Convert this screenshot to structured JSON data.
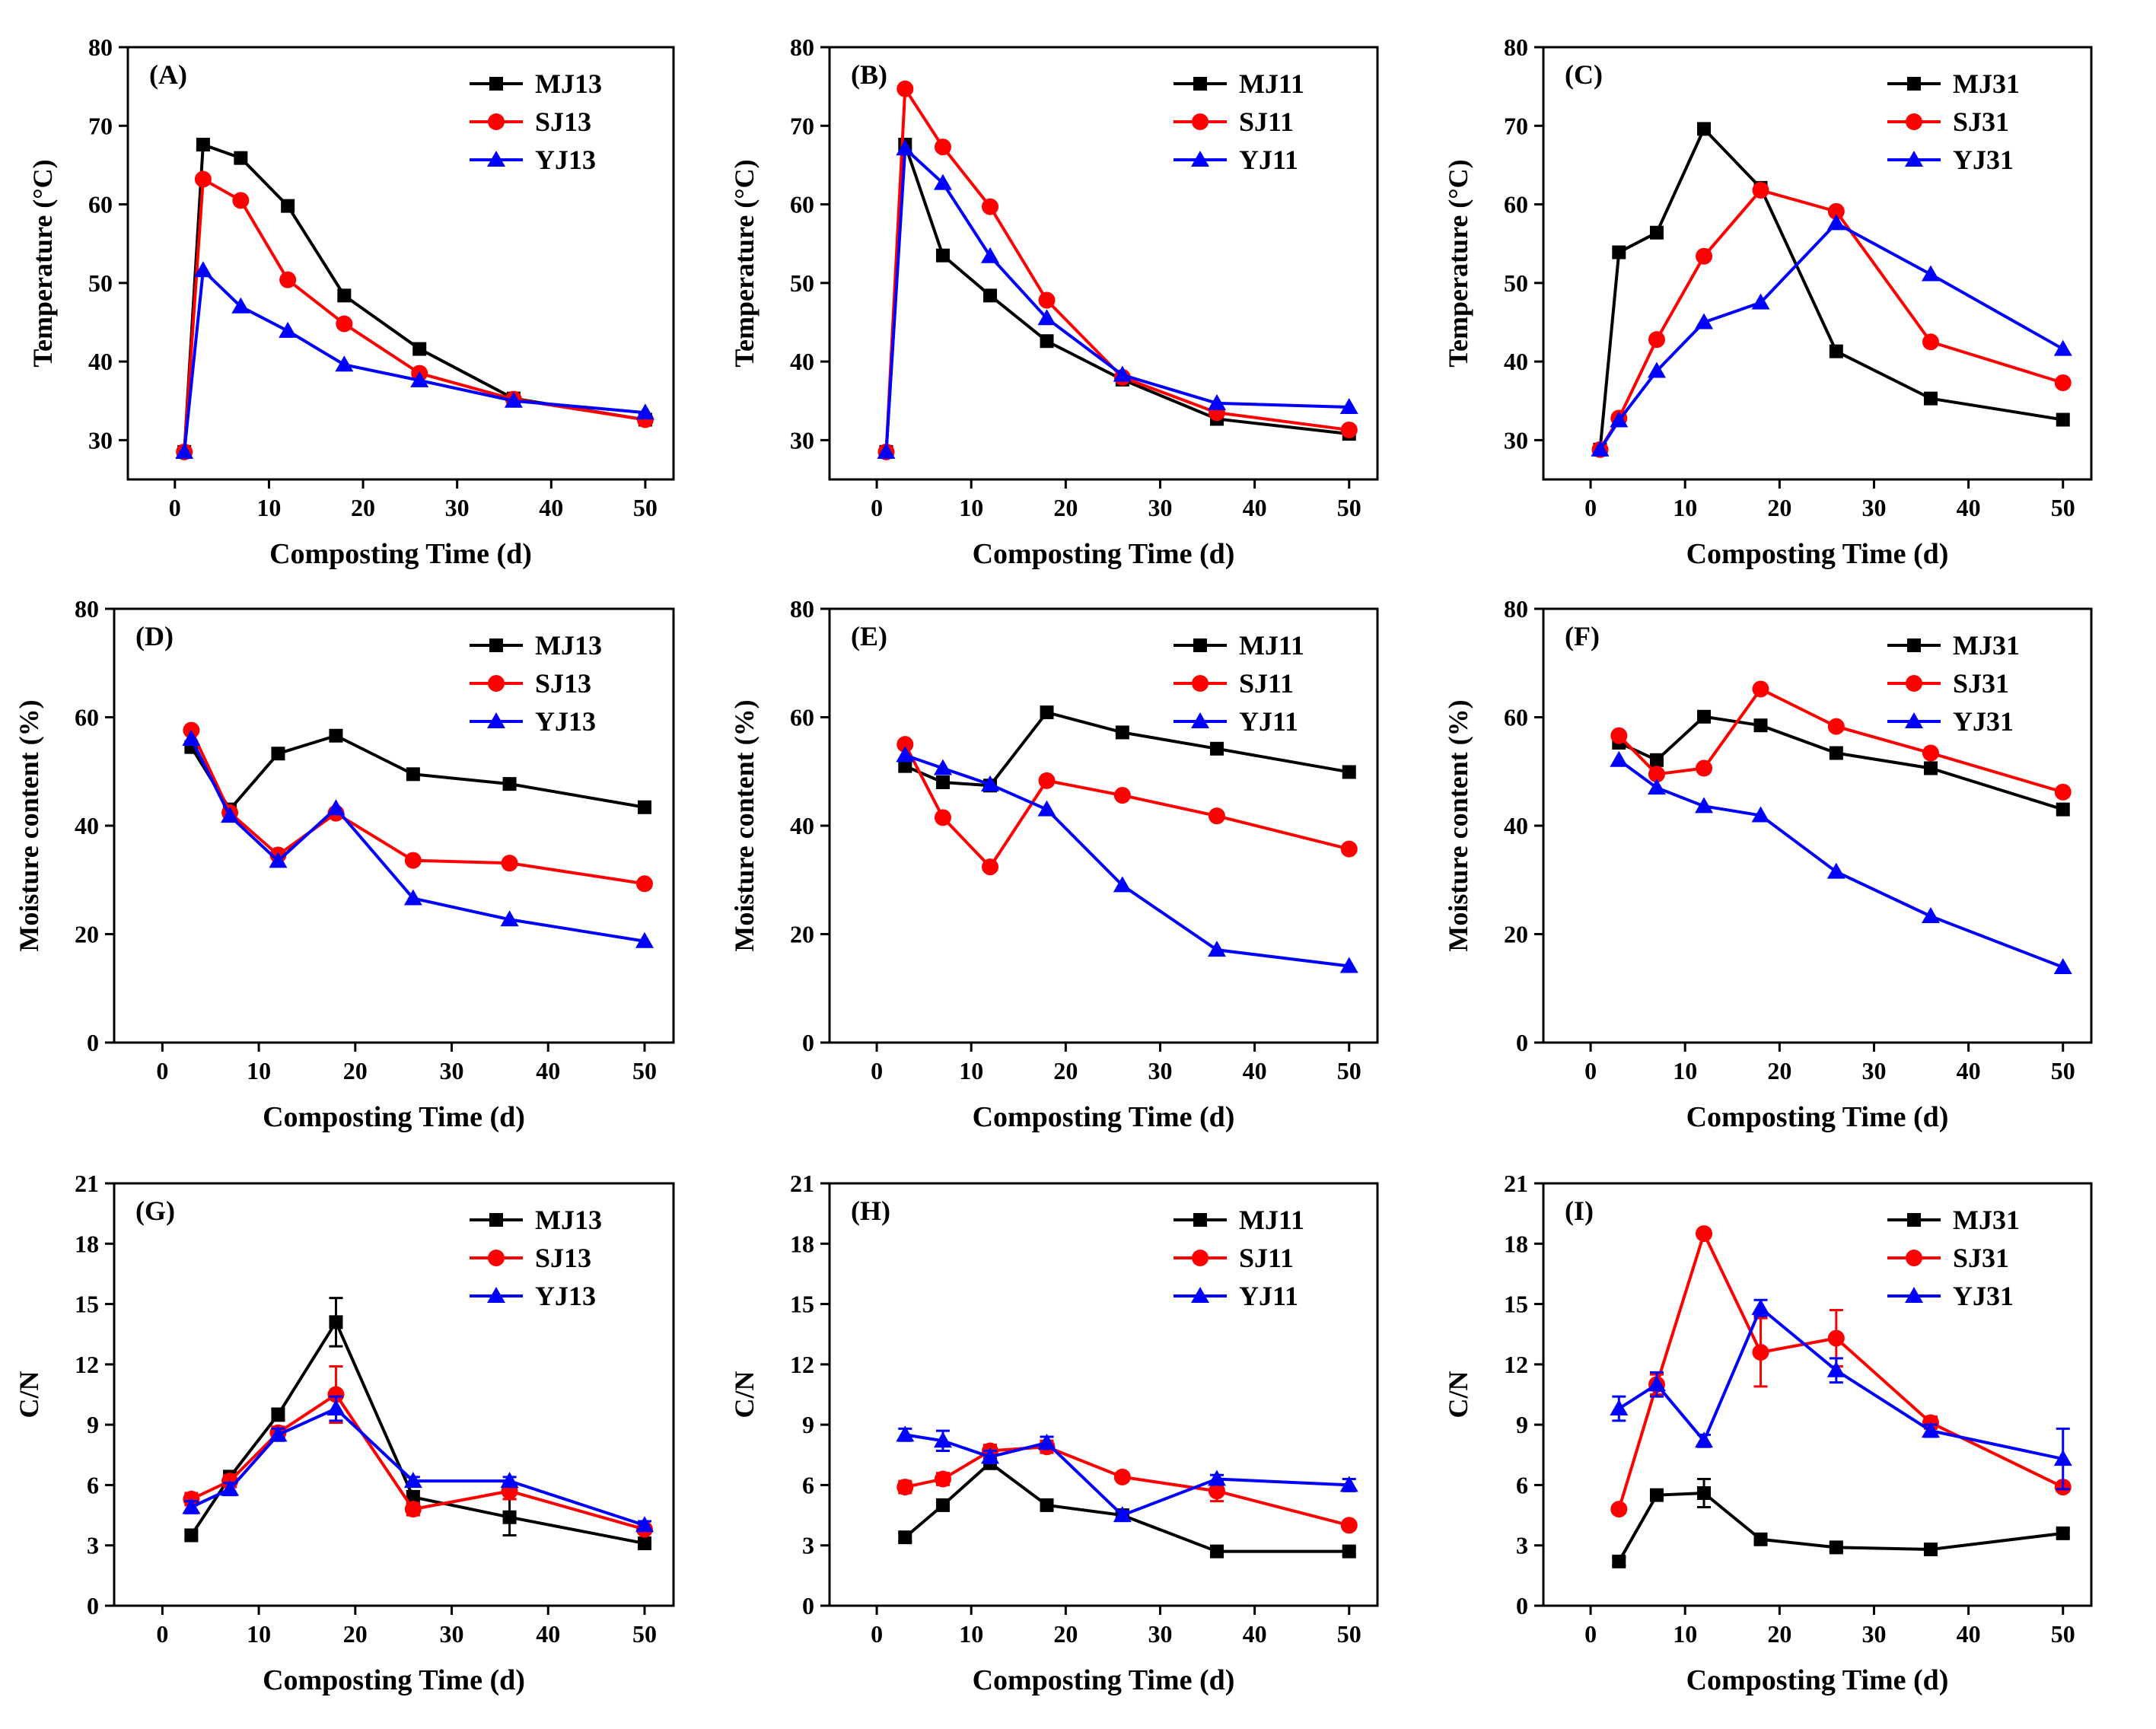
{
  "colors": {
    "MJ": "#000000",
    "SJ": "#ff0000",
    "YJ": "#0000ff"
  },
  "chart_data": [
    {
      "id": "A",
      "panel_label": "(A)",
      "type": "line",
      "xlabel": "Composting Time (d)",
      "ylabel": "Temperature (°C)",
      "xlim": [
        -5,
        53
      ],
      "ylim": [
        25,
        80
      ],
      "xticks": [
        0,
        10,
        20,
        30,
        40,
        50
      ],
      "yticks": [
        30,
        40,
        50,
        60,
        70,
        80
      ],
      "x": [
        1,
        3,
        7,
        12,
        18,
        26,
        36,
        50
      ],
      "series": [
        {
          "name": "MJ13",
          "values": [
            28.5,
            67.6,
            65.9,
            59.8,
            48.4,
            41.6,
            35.3,
            32.6
          ]
        },
        {
          "name": "SJ13",
          "values": [
            28.5,
            63.2,
            60.5,
            50.4,
            44.8,
            38.5,
            35.2,
            32.6
          ]
        },
        {
          "name": "YJ13",
          "values": [
            28.5,
            51.6,
            47.0,
            43.9,
            39.6,
            37.6,
            35.0,
            33.5
          ]
        }
      ]
    },
    {
      "id": "B",
      "panel_label": "(B)",
      "type": "line",
      "xlabel": "Composting Time (d)",
      "ylabel": "Temperature (°C)",
      "xlim": [
        -5,
        53
      ],
      "ylim": [
        25,
        80
      ],
      "xticks": [
        0,
        10,
        20,
        30,
        40,
        50
      ],
      "yticks": [
        30,
        40,
        50,
        60,
        70,
        80
      ],
      "x": [
        1,
        3,
        7,
        12,
        18,
        26,
        36,
        50
      ],
      "series": [
        {
          "name": "MJ11",
          "values": [
            28.5,
            67.6,
            53.5,
            48.4,
            42.6,
            37.7,
            32.7,
            30.8
          ]
        },
        {
          "name": "SJ11",
          "values": [
            28.5,
            74.7,
            67.3,
            59.7,
            47.8,
            38.0,
            33.5,
            31.3
          ]
        },
        {
          "name": "YJ11",
          "values": [
            28.5,
            67.1,
            62.7,
            53.4,
            45.5,
            38.3,
            34.7,
            34.2
          ]
        }
      ]
    },
    {
      "id": "C",
      "panel_label": "(C)",
      "type": "line",
      "xlabel": "Composting Time (d)",
      "ylabel": "Temperature (°C)",
      "xlim": [
        -5,
        53
      ],
      "ylim": [
        25,
        80
      ],
      "xticks": [
        0,
        10,
        20,
        30,
        40,
        50
      ],
      "yticks": [
        30,
        40,
        50,
        60,
        70,
        80
      ],
      "x": [
        1,
        3,
        7,
        12,
        18,
        26,
        36,
        50
      ],
      "series": [
        {
          "name": "MJ31",
          "values": [
            28.8,
            53.9,
            56.4,
            69.6,
            62.1,
            41.3,
            35.3,
            32.6
          ]
        },
        {
          "name": "SJ31",
          "values": [
            28.8,
            32.8,
            42.8,
            53.4,
            61.8,
            59.1,
            42.5,
            37.3
          ]
        },
        {
          "name": "YJ31",
          "values": [
            28.8,
            32.5,
            38.8,
            45.0,
            47.5,
            57.6,
            51.1,
            41.6
          ]
        }
      ]
    },
    {
      "id": "D",
      "panel_label": "(D)",
      "type": "line",
      "xlabel": "Composting Time (d)",
      "ylabel": "Moisture content (%)",
      "xlim": [
        -5,
        53
      ],
      "ylim": [
        0,
        80
      ],
      "xticks": [
        0,
        10,
        20,
        30,
        40,
        50
      ],
      "yticks": [
        0,
        20,
        40,
        60,
        80
      ],
      "x": [
        3,
        7,
        12,
        18,
        26,
        36,
        50
      ],
      "series": [
        {
          "name": "MJ13",
          "values": [
            54.5,
            43.0,
            53.3,
            56.6,
            49.5,
            47.7,
            43.4
          ]
        },
        {
          "name": "SJ13",
          "values": [
            57.6,
            42.4,
            34.6,
            42.3,
            33.6,
            33.1,
            29.3
          ]
        },
        {
          "name": "YJ13",
          "values": [
            56.0,
            41.8,
            33.5,
            43.2,
            26.6,
            22.7,
            18.7
          ]
        }
      ]
    },
    {
      "id": "E",
      "panel_label": "(E)",
      "type": "line",
      "xlabel": "Composting Time (d)",
      "ylabel": "Moisture content (%)",
      "xlim": [
        -5,
        53
      ],
      "ylim": [
        0,
        80
      ],
      "xticks": [
        0,
        10,
        20,
        30,
        40,
        50
      ],
      "yticks": [
        0,
        20,
        40,
        60,
        80
      ],
      "x": [
        3,
        7,
        12,
        18,
        26,
        36,
        50
      ],
      "series": [
        {
          "name": "MJ11",
          "values": [
            51.0,
            48.0,
            47.4,
            60.9,
            57.2,
            54.2,
            49.9
          ]
        },
        {
          "name": "SJ11",
          "values": [
            55.0,
            41.5,
            32.4,
            48.3,
            45.6,
            41.8,
            35.7
          ]
        },
        {
          "name": "YJ11",
          "values": [
            53.0,
            50.6,
            47.6,
            43.0,
            29.0,
            17.1,
            14.1
          ]
        }
      ]
    },
    {
      "id": "F",
      "panel_label": "(F)",
      "type": "line",
      "xlabel": "Composting Time (d)",
      "ylabel": "Moisture content (%)",
      "xlim": [
        -5,
        53
      ],
      "ylim": [
        0,
        80
      ],
      "xticks": [
        0,
        10,
        20,
        30,
        40,
        50
      ],
      "yticks": [
        0,
        20,
        40,
        60,
        80
      ],
      "x": [
        3,
        7,
        12,
        18,
        26,
        36,
        50
      ],
      "series": [
        {
          "name": "MJ31",
          "values": [
            55.3,
            52.1,
            60.1,
            58.5,
            53.4,
            50.6,
            43.0
          ]
        },
        {
          "name": "SJ31",
          "values": [
            56.6,
            49.5,
            50.6,
            65.2,
            58.3,
            53.4,
            46.2
          ]
        },
        {
          "name": "YJ31",
          "values": [
            52.1,
            47.0,
            43.6,
            41.9,
            31.5,
            23.3,
            13.9
          ]
        }
      ]
    },
    {
      "id": "G",
      "panel_label": "(G)",
      "type": "line",
      "xlabel": "Composting Time (d)",
      "ylabel": "C/N",
      "xlim": [
        -5,
        53
      ],
      "ylim": [
        0,
        21
      ],
      "xticks": [
        0,
        10,
        20,
        30,
        40,
        50
      ],
      "yticks": [
        0,
        3,
        6,
        9,
        12,
        15,
        18,
        21
      ],
      "x": [
        3,
        7,
        12,
        18,
        26,
        36,
        50
      ],
      "series": [
        {
          "name": "MJ13",
          "values": [
            3.5,
            6.4,
            9.5,
            14.1,
            5.4,
            4.4,
            3.1
          ],
          "errors": [
            0.2,
            0.3,
            0.3,
            1.2,
            0.3,
            0.9,
            0.2
          ]
        },
        {
          "name": "SJ13",
          "values": [
            5.3,
            6.2,
            8.6,
            10.5,
            4.8,
            5.7,
            3.8
          ],
          "errors": [
            0.3,
            0.3,
            0.3,
            1.4,
            0.3,
            0.4,
            0.2
          ]
        },
        {
          "name": "YJ13",
          "values": [
            4.9,
            5.8,
            8.5,
            9.8,
            6.2,
            6.2,
            4.0
          ],
          "errors": [
            0.3,
            0.3,
            0.3,
            0.6,
            0.2,
            0.2,
            0.2
          ]
        }
      ]
    },
    {
      "id": "H",
      "panel_label": "(H)",
      "type": "line",
      "xlabel": "Composting Time (d)",
      "ylabel": "C/N",
      "xlim": [
        -5,
        53
      ],
      "ylim": [
        0,
        21
      ],
      "xticks": [
        0,
        10,
        20,
        30,
        40,
        50
      ],
      "yticks": [
        0,
        3,
        6,
        9,
        12,
        15,
        18,
        21
      ],
      "x": [
        3,
        7,
        12,
        18,
        26,
        36,
        50
      ],
      "series": [
        {
          "name": "MJ11",
          "values": [
            3.4,
            5.0,
            7.1,
            5.0,
            4.5,
            2.7,
            2.7
          ],
          "errors": [
            0.2,
            0.2,
            0.3,
            0.2,
            0.2,
            0.2,
            0.2
          ]
        },
        {
          "name": "SJ11",
          "values": [
            5.9,
            6.3,
            7.7,
            7.9,
            6.4,
            5.7,
            4.0
          ],
          "errors": [
            0.3,
            0.3,
            0.3,
            0.3,
            0.2,
            0.5,
            0.2
          ]
        },
        {
          "name": "YJ11",
          "values": [
            8.5,
            8.2,
            7.4,
            8.1,
            4.5,
            6.3,
            6.0
          ],
          "errors": [
            0.3,
            0.5,
            0.3,
            0.3,
            0.2,
            0.2,
            0.3
          ]
        }
      ]
    },
    {
      "id": "I",
      "panel_label": "(I)",
      "type": "line",
      "xlabel": "Composting Time (d)",
      "ylabel": "C/N",
      "xlim": [
        -5,
        53
      ],
      "ylim": [
        0,
        21
      ],
      "xticks": [
        0,
        10,
        20,
        30,
        40,
        50
      ],
      "yticks": [
        0,
        3,
        6,
        9,
        12,
        15,
        18,
        21
      ],
      "x": [
        3,
        7,
        12,
        18,
        26,
        36,
        50
      ],
      "series": [
        {
          "name": "MJ31",
          "values": [
            2.2,
            5.5,
            5.6,
            3.3,
            2.9,
            2.8,
            3.6
          ],
          "errors": [
            0.2,
            0.2,
            0.7,
            0.2,
            0.2,
            0.2,
            0.2
          ]
        },
        {
          "name": "SJ31",
          "values": [
            4.8,
            11.0,
            18.5,
            12.6,
            13.3,
            9.1,
            5.9
          ],
          "errors": [
            0.2,
            0.5,
            0.2,
            1.7,
            1.4,
            0.3,
            0.2
          ]
        },
        {
          "name": "YJ31",
          "values": [
            9.8,
            11.0,
            8.2,
            14.8,
            11.7,
            8.7,
            7.3
          ],
          "errors": [
            0.6,
            0.6,
            0.3,
            0.4,
            0.6,
            0.3,
            1.5
          ]
        }
      ]
    }
  ]
}
